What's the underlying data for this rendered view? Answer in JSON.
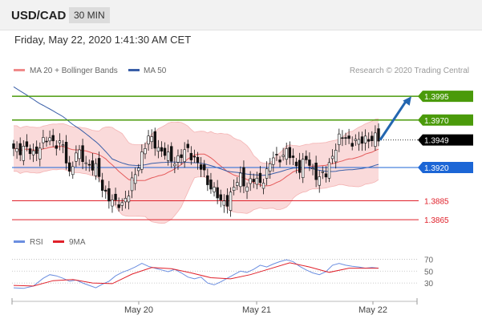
{
  "header": {
    "pair": "USD/CAD",
    "timeframe": "30 MIN",
    "datetime": "Friday, May 22, 2020 1:41:30 AM CET"
  },
  "legend": {
    "ma20": "MA 20 + Bollinger Bands",
    "ma50": "MA 50",
    "credit": "Research © 2020 Trading Central"
  },
  "rsi_legend": {
    "rsi": "RSI",
    "ma9": "9MA"
  },
  "colors": {
    "green": "#4a9a0a",
    "blue": "#1c66d6",
    "red": "#e0202a",
    "bollinger": "#f9d4d4",
    "ma20": "#e55a5a",
    "ma50": "#3a5fa8",
    "rsi": "#6b8ee0",
    "rsi_ma": "#e0202a",
    "arrow": "#2366b0"
  },
  "chart_data": [
    {
      "type": "candlestick",
      "x_labels": [
        "May 20",
        "May 21",
        "May 22"
      ],
      "y_range": [
        1.3855,
        1.4012
      ],
      "price_levels": [
        {
          "value": 1.3995,
          "label": "1.3995",
          "kind": "resistance"
        },
        {
          "value": 1.397,
          "label": "1.3970",
          "kind": "resistance"
        },
        {
          "value": 1.3949,
          "label": "1.3949",
          "kind": "current"
        },
        {
          "value": 1.392,
          "label": "1.3920",
          "kind": "pivot"
        },
        {
          "value": 1.3885,
          "label": "1.3885",
          "kind": "support"
        },
        {
          "value": 1.3865,
          "label": "1.3865",
          "kind": "support"
        }
      ],
      "series": [
        "MA 20 + Bollinger Bands",
        "MA 50"
      ],
      "close_path": [
        [
          0,
          1.394
        ],
        [
          3,
          1.3939
        ],
        [
          6,
          1.3936
        ],
        [
          9,
          1.3945
        ],
        [
          11,
          1.3952
        ],
        [
          13,
          1.3945
        ],
        [
          15,
          1.3941
        ],
        [
          17,
          1.3915
        ],
        [
          19,
          1.3935
        ],
        [
          22,
          1.3926
        ],
        [
          25,
          1.3918
        ],
        [
          27,
          1.39
        ],
        [
          29,
          1.3888
        ],
        [
          31,
          1.388
        ],
        [
          33,
          1.3884
        ],
        [
          35,
          1.3892
        ],
        [
          37,
          1.3913
        ],
        [
          39,
          1.3935
        ],
        [
          41,
          1.395
        ],
        [
          43,
          1.3946
        ],
        [
          45,
          1.3937
        ],
        [
          47,
          1.393
        ],
        [
          49,
          1.3928
        ],
        [
          51,
          1.3932
        ],
        [
          53,
          1.3938
        ],
        [
          55,
          1.3931
        ],
        [
          57,
          1.3918
        ],
        [
          59,
          1.3906
        ],
        [
          61,
          1.3896
        ],
        [
          63,
          1.3882
        ],
        [
          65,
          1.3886
        ],
        [
          67,
          1.3898
        ],
        [
          69,
          1.391
        ],
        [
          71,
          1.3902
        ],
        [
          73,
          1.3906
        ],
        [
          75,
          1.3905
        ],
        [
          77,
          1.3915
        ],
        [
          79,
          1.393
        ],
        [
          81,
          1.3932
        ],
        [
          83,
          1.3935
        ],
        [
          85,
          1.3928
        ],
        [
          87,
          1.392
        ],
        [
          89,
          1.3927
        ],
        [
          91,
          1.3918
        ],
        [
          93,
          1.3909
        ],
        [
          95,
          1.3912
        ],
        [
          97,
          1.3935
        ],
        [
          99,
          1.3949
        ],
        [
          101,
          1.3952
        ],
        [
          103,
          1.3948
        ],
        [
          105,
          1.3945
        ],
        [
          107,
          1.3952
        ],
        [
          109,
          1.395
        ],
        [
          111,
          1.3949
        ]
      ],
      "arrow": {
        "from": [
          111,
          1.3949
        ],
        "to": [
          121,
          1.3995
        ]
      }
    },
    {
      "type": "line",
      "title": "RSI",
      "y_ticks": [
        70,
        50,
        30
      ],
      "y_range": [
        10,
        80
      ],
      "rsi": [
        [
          0,
          22
        ],
        [
          3,
          21
        ],
        [
          6,
          25
        ],
        [
          9,
          38
        ],
        [
          11,
          44
        ],
        [
          13,
          42
        ],
        [
          15,
          38
        ],
        [
          17,
          33
        ],
        [
          19,
          35
        ],
        [
          21,
          30
        ],
        [
          23,
          26
        ],
        [
          25,
          22
        ],
        [
          27,
          28
        ],
        [
          29,
          33
        ],
        [
          31,
          42
        ],
        [
          33,
          48
        ],
        [
          35,
          52
        ],
        [
          37,
          57
        ],
        [
          39,
          63
        ],
        [
          41,
          58
        ],
        [
          43,
          55
        ],
        [
          45,
          52
        ],
        [
          47,
          49
        ],
        [
          49,
          53
        ],
        [
          51,
          47
        ],
        [
          53,
          40
        ],
        [
          55,
          37
        ],
        [
          57,
          40
        ],
        [
          59,
          30
        ],
        [
          61,
          27
        ],
        [
          63,
          32
        ],
        [
          65,
          38
        ],
        [
          67,
          44
        ],
        [
          69,
          50
        ],
        [
          71,
          48
        ],
        [
          73,
          53
        ],
        [
          75,
          60
        ],
        [
          77,
          57
        ],
        [
          79,
          62
        ],
        [
          81,
          66
        ],
        [
          83,
          69
        ],
        [
          85,
          66
        ],
        [
          87,
          58
        ],
        [
          89,
          52
        ],
        [
          91,
          47
        ],
        [
          93,
          44
        ],
        [
          95,
          49
        ],
        [
          97,
          60
        ],
        [
          99,
          63
        ],
        [
          101,
          60
        ],
        [
          103,
          58
        ],
        [
          105,
          57
        ],
        [
          107,
          55
        ],
        [
          109,
          56
        ],
        [
          111,
          55
        ]
      ],
      "ma9": [
        [
          0,
          26
        ],
        [
          6,
          25
        ],
        [
          12,
          34
        ],
        [
          18,
          36
        ],
        [
          24,
          30
        ],
        [
          30,
          29
        ],
        [
          36,
          45
        ],
        [
          42,
          56
        ],
        [
          48,
          54
        ],
        [
          54,
          47
        ],
        [
          60,
          39
        ],
        [
          66,
          37
        ],
        [
          72,
          44
        ],
        [
          78,
          54
        ],
        [
          84,
          64
        ],
        [
          90,
          57
        ],
        [
          96,
          48
        ],
        [
          102,
          55
        ],
        [
          108,
          55
        ],
        [
          111,
          55
        ]
      ]
    }
  ]
}
